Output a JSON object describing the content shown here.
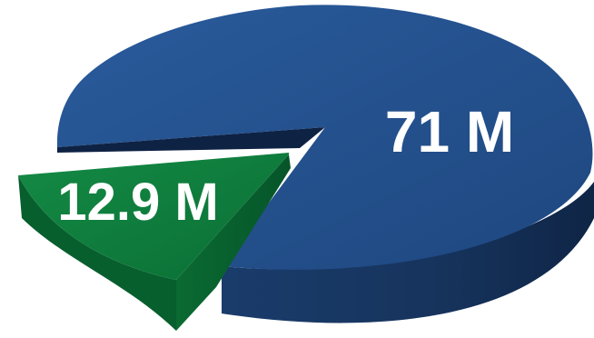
{
  "chart_data": {
    "type": "pie",
    "style": "3d-exploded",
    "slices": [
      {
        "label": "71 M",
        "value": 71,
        "color": "#23508F"
      },
      {
        "label": "12.9 M",
        "value": 12.9,
        "color": "#0B7A3A",
        "exploded": true
      }
    ]
  }
}
